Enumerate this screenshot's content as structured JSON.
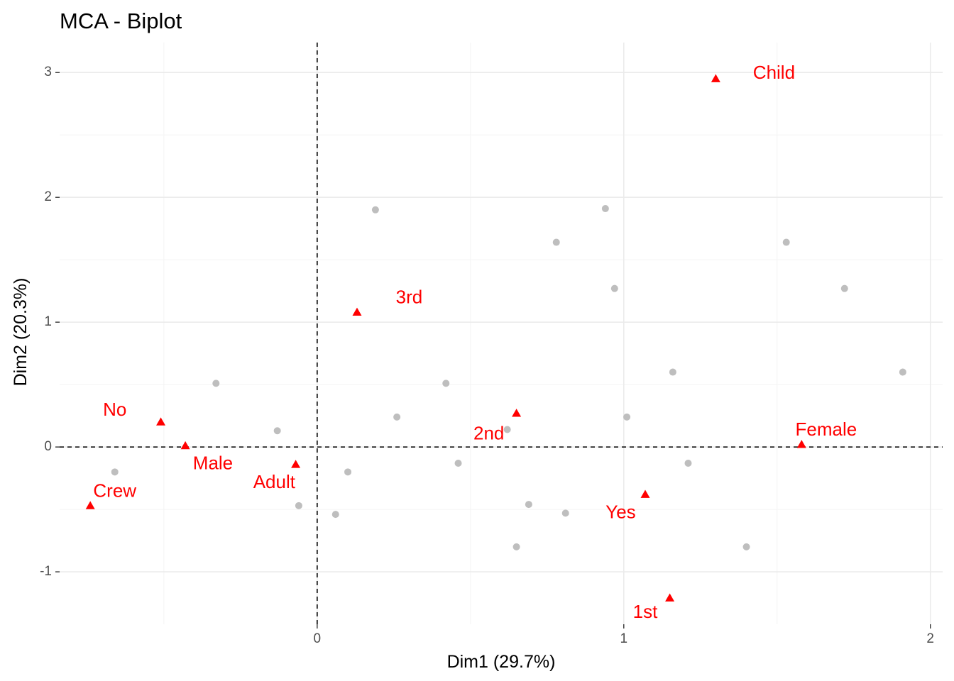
{
  "chart_data": {
    "type": "scatter",
    "title": "MCA - Biplot",
    "xlabel": "Dim1 (29.7%)",
    "ylabel": "Dim2 (20.3%)",
    "xlim": [
      -0.84,
      2.04
    ],
    "ylim": [
      -1.42,
      3.24
    ],
    "x_ticks": [
      0,
      1,
      2
    ],
    "x_tick_labels": [
      "0",
      "1",
      "2"
    ],
    "y_ticks": [
      -1,
      0,
      1,
      2,
      3
    ],
    "y_tick_labels": [
      "-1",
      "0",
      "1",
      "2",
      "3"
    ],
    "grid": true,
    "reference_lines": {
      "x": 0,
      "y": 0
    },
    "colors": {
      "individuals": "#bebebe",
      "variables": "#ff0000"
    },
    "individuals": [
      {
        "x": 0.19,
        "y": 1.9
      },
      {
        "x": 0.94,
        "y": 1.91
      },
      {
        "x": 0.78,
        "y": 1.64
      },
      {
        "x": 1.53,
        "y": 1.64
      },
      {
        "x": 0.97,
        "y": 1.27
      },
      {
        "x": 1.72,
        "y": 1.27
      },
      {
        "x": -0.33,
        "y": 0.51
      },
      {
        "x": 0.42,
        "y": 0.51
      },
      {
        "x": 1.16,
        "y": 0.6
      },
      {
        "x": 1.91,
        "y": 0.6
      },
      {
        "x": -0.13,
        "y": 0.13
      },
      {
        "x": 0.26,
        "y": 0.24
      },
      {
        "x": 0.62,
        "y": 0.14
      },
      {
        "x": 1.01,
        "y": 0.24
      },
      {
        "x": -0.66,
        "y": -0.2
      },
      {
        "x": 0.1,
        "y": -0.2
      },
      {
        "x": 0.46,
        "y": -0.13
      },
      {
        "x": 1.21,
        "y": -0.13
      },
      {
        "x": -0.06,
        "y": -0.47
      },
      {
        "x": 0.06,
        "y": -0.54
      },
      {
        "x": 0.69,
        "y": -0.46
      },
      {
        "x": 0.81,
        "y": -0.53
      },
      {
        "x": 0.65,
        "y": -0.8
      },
      {
        "x": 1.4,
        "y": -0.8
      }
    ],
    "variables": [
      {
        "label": "Child",
        "x": 1.3,
        "y": 2.95,
        "label_dx": 0.19,
        "label_dy": 0.04,
        "anchor": "middle"
      },
      {
        "label": "3rd",
        "x": 0.13,
        "y": 1.08,
        "label_dx": 0.17,
        "label_dy": 0.11,
        "anchor": "middle"
      },
      {
        "label": "No",
        "x": -0.51,
        "y": 0.2,
        "label_dx": -0.15,
        "label_dy": 0.09,
        "anchor": "middle"
      },
      {
        "label": "2nd",
        "x": 0.65,
        "y": 0.27,
        "label_dx": -0.09,
        "label_dy": -0.17,
        "anchor": "middle"
      },
      {
        "label": "Male",
        "x": -0.43,
        "y": 0.01,
        "label_dx": 0.09,
        "label_dy": -0.15,
        "anchor": "middle"
      },
      {
        "label": "Female",
        "x": 1.58,
        "y": 0.02,
        "label_dx": 0.08,
        "label_dy": 0.11,
        "anchor": "middle"
      },
      {
        "label": "Adult",
        "x": -0.07,
        "y": -0.14,
        "label_dx": -0.07,
        "label_dy": -0.15,
        "anchor": "middle"
      },
      {
        "label": "Crew",
        "x": -0.74,
        "y": -0.47,
        "label_dx": 0.08,
        "label_dy": 0.11,
        "anchor": "middle"
      },
      {
        "label": "Yes",
        "x": 1.07,
        "y": -0.38,
        "label_dx": -0.08,
        "label_dy": -0.15,
        "anchor": "middle"
      },
      {
        "label": "1st",
        "x": 1.15,
        "y": -1.21,
        "label_dx": -0.08,
        "label_dy": -0.12,
        "anchor": "middle"
      }
    ]
  }
}
